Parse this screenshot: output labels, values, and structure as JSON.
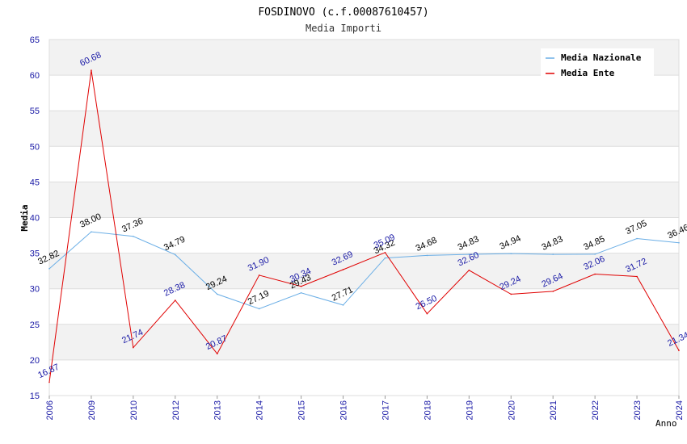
{
  "title": "FOSDINOVO (c.f.00087610457)",
  "subtitle": "Media Importi",
  "chart_data": {
    "type": "line",
    "title": "FOSDINOVO (c.f.00087610457)",
    "subtitle": "Media Importi",
    "xlabel": "Anno",
    "ylabel": "Media",
    "ylim": [
      15,
      65
    ],
    "yticks": [
      15,
      20,
      25,
      30,
      35,
      40,
      45,
      50,
      55,
      60,
      65
    ],
    "categories": [
      "2006",
      "2009",
      "2010",
      "2012",
      "2013",
      "2014",
      "2015",
      "2016",
      "2017",
      "2018",
      "2019",
      "2020",
      "2021",
      "2022",
      "2023",
      "2024"
    ],
    "series": [
      {
        "name": "Media Nazionale",
        "color": "#6aaee6",
        "values": [
          32.82,
          38.0,
          37.36,
          34.79,
          29.24,
          27.19,
          29.43,
          27.71,
          34.32,
          34.68,
          34.83,
          34.94,
          34.83,
          34.85,
          37.05,
          36.46
        ],
        "labels": [
          "32.82",
          "38.00",
          "37.36",
          "34.79",
          "29.24",
          "27.19",
          "29.43",
          "27.71",
          "34.32",
          "34.68",
          "34.83",
          "34.94",
          "34.83",
          "34.85",
          "37.05",
          "36.46"
        ]
      },
      {
        "name": "Media Ente",
        "color": "#e00000",
        "values": [
          16.87,
          60.68,
          21.74,
          28.38,
          20.87,
          31.9,
          30.34,
          32.69,
          35.09,
          26.5,
          32.6,
          29.24,
          29.64,
          32.06,
          31.72,
          21.34
        ],
        "labels": [
          "16.87",
          "60.68",
          "21.74",
          "28.38",
          "20.87",
          "31.90",
          "30.34",
          "32.69",
          "35.09",
          "26.50",
          "32.60",
          "29.24",
          "29.64",
          "32.06",
          "31.72",
          "21.34"
        ]
      }
    ],
    "legend_position": "top-right",
    "grid": true
  }
}
